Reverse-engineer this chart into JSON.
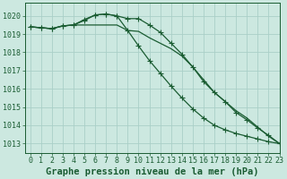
{
  "title": "Graphe pression niveau de la mer (hPa)",
  "background_color": "#cce8e0",
  "grid_color": "#aacfc8",
  "line_color": "#1a5c32",
  "xlim": [
    -0.5,
    23
  ],
  "ylim": [
    1012.5,
    1020.7
  ],
  "yticks": [
    1013,
    1014,
    1015,
    1016,
    1017,
    1018,
    1019,
    1020
  ],
  "xticks": [
    0,
    1,
    2,
    3,
    4,
    5,
    6,
    7,
    8,
    9,
    10,
    11,
    12,
    13,
    14,
    15,
    16,
    17,
    18,
    19,
    20,
    21,
    22,
    23
  ],
  "series": [
    {
      "y": [
        1019.4,
        1019.35,
        1019.3,
        1019.45,
        1019.5,
        1019.75,
        1020.05,
        1020.1,
        1020.0,
        1019.85,
        1019.85,
        1019.5,
        1019.1,
        1018.5,
        1017.9,
        1017.2,
        1016.4,
        1015.8,
        1015.3,
        1014.7,
        1014.3,
        1013.85,
        1013.45,
        1013.0
      ],
      "marker": "+",
      "marker_size": 4,
      "lw": 0.9
    },
    {
      "y": [
        1019.4,
        1019.35,
        1019.3,
        1019.45,
        1019.5,
        1019.5,
        1019.5,
        1019.5,
        1019.5,
        1019.2,
        1019.15,
        1018.8,
        1018.5,
        1018.2,
        1017.8,
        1017.2,
        1016.5,
        1015.8,
        1015.3,
        1014.8,
        1014.4,
        1013.9,
        1013.4,
        1013.0
      ],
      "marker": null,
      "marker_size": 0,
      "lw": 0.9
    },
    {
      "y": [
        1019.4,
        1019.35,
        1019.3,
        1019.45,
        1019.5,
        1019.8,
        1020.05,
        1020.1,
        1020.0,
        1019.2,
        1018.35,
        1017.55,
        1016.85,
        1016.15,
        1015.5,
        1014.9,
        1014.4,
        1014.0,
        1013.75,
        1013.55,
        1013.4,
        1013.25,
        1013.1,
        1013.0
      ],
      "marker": "+",
      "marker_size": 4,
      "lw": 0.9
    }
  ],
  "title_fontsize": 7.5,
  "tick_fontsize": 6.0,
  "tick_color": "#1a5c32"
}
